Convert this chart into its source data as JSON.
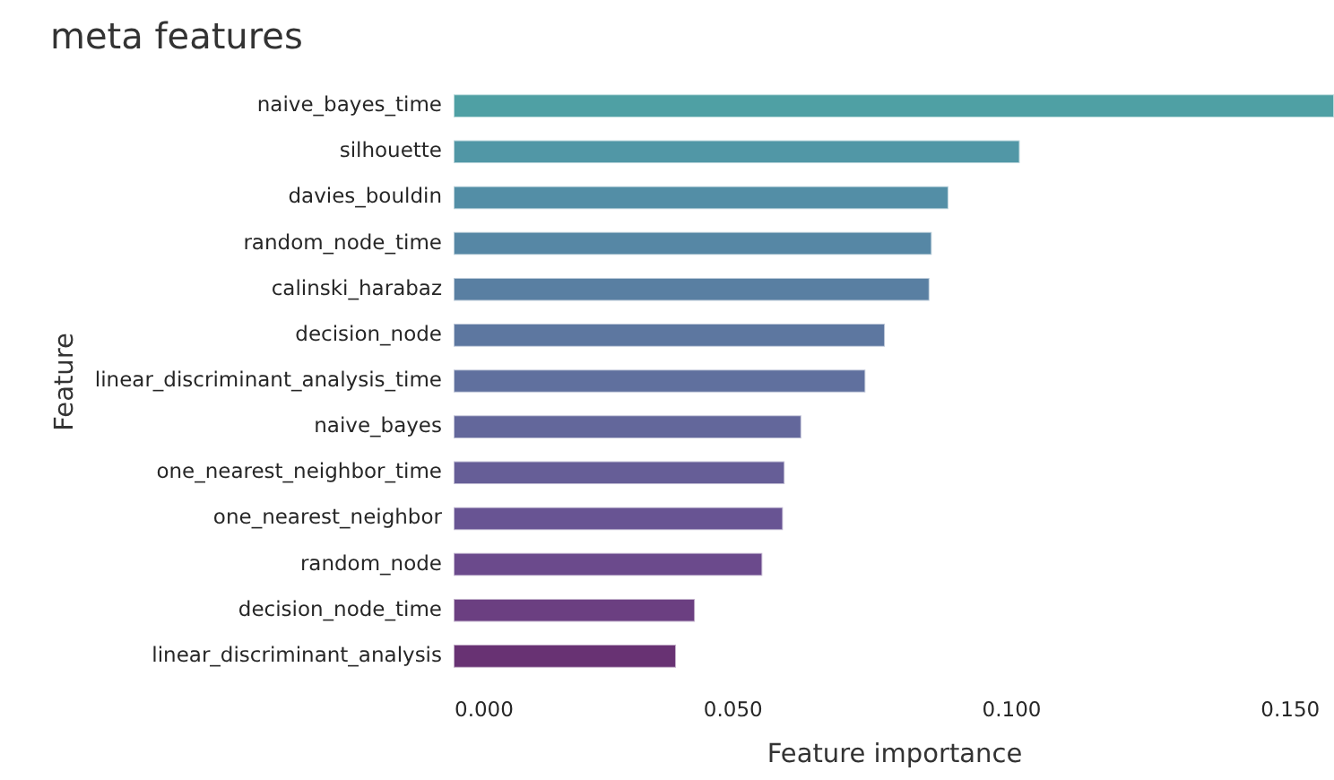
{
  "chart_data": {
    "type": "bar",
    "orientation": "horizontal",
    "title": "meta features",
    "xlabel": "Feature importance",
    "ylabel": "Feature",
    "categories": [
      "naive_bayes_time",
      "silhouette",
      "davies_bouldin",
      "random_node_time",
      "calinski_harabaz",
      "decision_node",
      "linear_discriminant_analysis_time",
      "naive_bayes",
      "one_nearest_neighbor_time",
      "one_nearest_neighbor",
      "random_node",
      "decision_node_time",
      "linear_discriminant_analysis"
    ],
    "values": [
      0.158,
      0.1016,
      0.0888,
      0.0858,
      0.0854,
      0.0774,
      0.0739,
      0.0624,
      0.0594,
      0.0591,
      0.0554,
      0.0433,
      0.0399
    ],
    "colors": [
      "#4fa0a4",
      "#5197a6",
      "#538ea6",
      "#5687a5",
      "#597fa2",
      "#5d77a0",
      "#60709e",
      "#63679b",
      "#665e97",
      "#685493",
      "#6b4a8c",
      "#6b3f81",
      "#683273"
    ],
    "xlim": [
      0,
      0.158
    ],
    "xticks": [
      {
        "value": 0,
        "label": "0.000"
      },
      {
        "value": 0.05,
        "label": "0.050"
      },
      {
        "value": 0.1,
        "label": "0.100"
      },
      {
        "value": 0.15,
        "label": "0.150"
      }
    ],
    "grid": false
  }
}
